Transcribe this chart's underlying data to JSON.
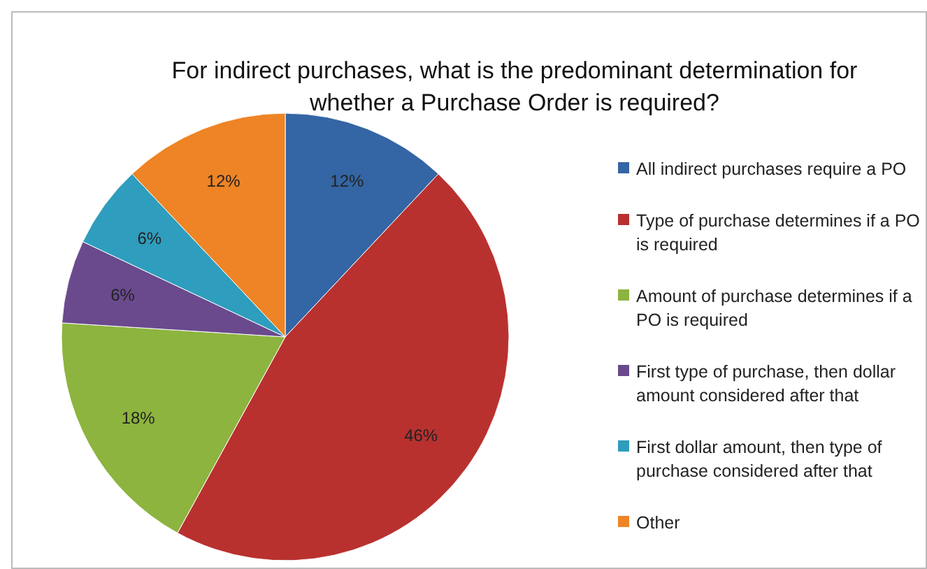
{
  "chart_data": {
    "type": "pie",
    "title": "For indirect purchases, what is the predominant determination for whether a Purchase Order is required?",
    "categories": [
      "All indirect purchases require a PO",
      "Type of purchase determines if a PO is required",
      "Amount of purchase determines if a PO is required",
      "First type of purchase, then dollar amount considered after that",
      "First dollar amount, then type of purchase considered after that",
      "Other"
    ],
    "values": [
      12,
      46,
      18,
      6,
      6,
      12
    ],
    "colors": [
      "#3465a4",
      "#b8312f",
      "#8db43e",
      "#6a4a8d",
      "#2f9dbd",
      "#ee8425"
    ],
    "value_labels": [
      "12%",
      "46%",
      "18%",
      "6%",
      "6%",
      "12%"
    ],
    "legend": "right"
  }
}
